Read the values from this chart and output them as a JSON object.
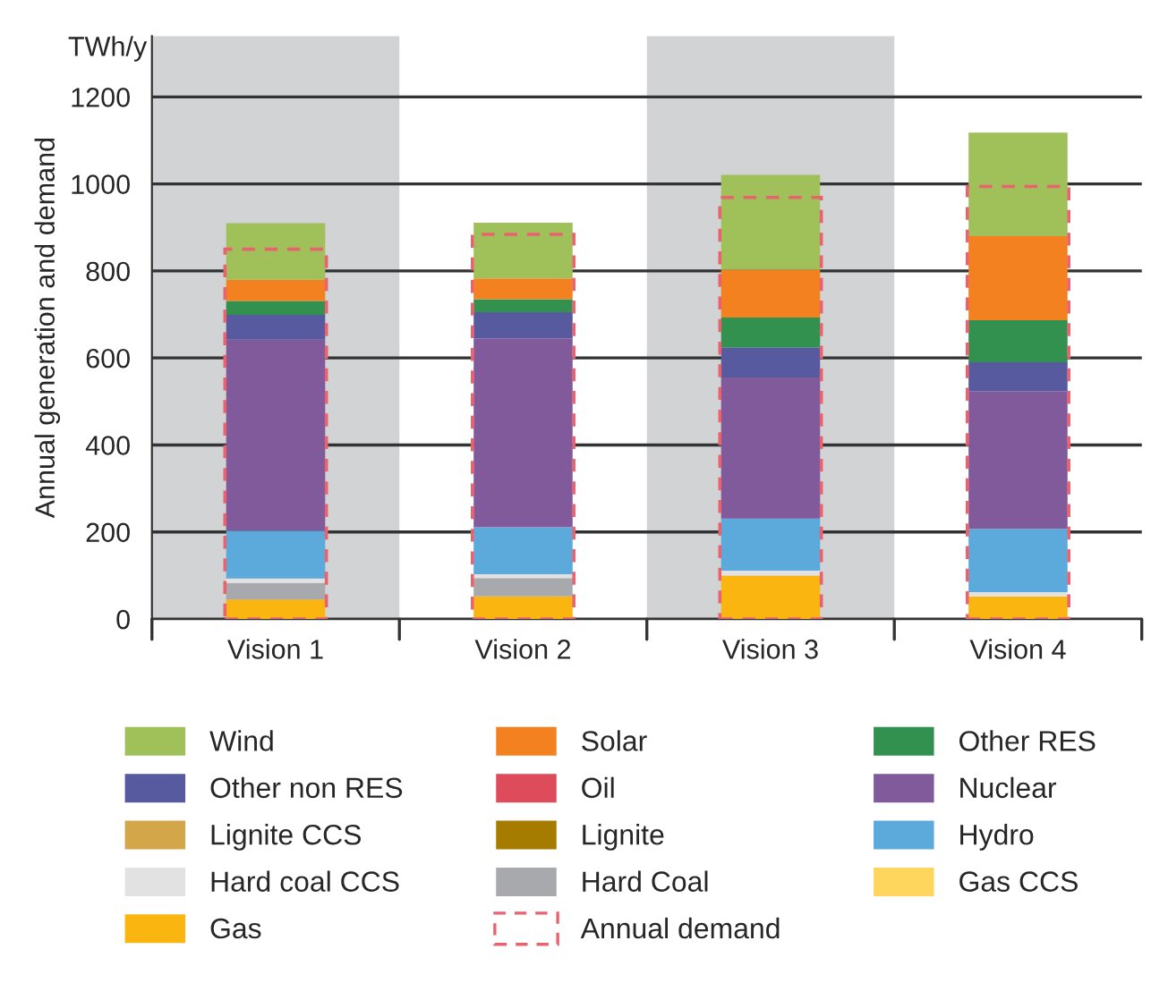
{
  "chart_data": [
    {
      "type": "bar",
      "stacked": true,
      "categories": [
        "Vision 1",
        "Vision 2",
        "Vision 3",
        "Vision 4"
      ],
      "ylabel": "Annual generation and demand",
      "annotations": [
        "TWh/y"
      ],
      "ylim": [
        0,
        1340
      ],
      "yticks": [
        0,
        200,
        400,
        600,
        800,
        1000,
        1200
      ],
      "grid": "y",
      "legend": "bottom",
      "bands": [
        {
          "axis": "x",
          "from": "Vision 1",
          "to": "Vision 1",
          "color": "#d1d3d4"
        },
        {
          "axis": "x",
          "from": "Vision 3",
          "to": "Vision 3",
          "color": "#d1d3d4"
        }
      ],
      "series": [
        {
          "name": "Gas",
          "color": "#fbb511",
          "values": [
            45,
            52,
            100,
            52
          ]
        },
        {
          "name": "Gas CCS",
          "color": "#fed65e",
          "values": [
            0,
            0,
            0,
            0
          ]
        },
        {
          "name": "Hard Coal",
          "color": "#a7a9ac",
          "values": [
            38,
            42,
            0,
            0
          ]
        },
        {
          "name": "Hard coal CCS",
          "color": "#e2e2e2",
          "values": [
            10,
            9,
            11,
            10
          ]
        },
        {
          "name": "Hydro",
          "color": "#5ca9dc",
          "values": [
            110,
            108,
            120,
            145
          ]
        },
        {
          "name": "Lignite",
          "color": "#a57b00",
          "values": [
            0,
            0,
            0,
            0
          ]
        },
        {
          "name": "Lignite CCS",
          "color": "#d4a64a",
          "values": [
            0,
            0,
            0,
            0
          ]
        },
        {
          "name": "Nuclear",
          "color": "#815a9b",
          "values": [
            439,
            434,
            324,
            317
          ]
        },
        {
          "name": "Oil",
          "color": "#de4b5a",
          "values": [
            0,
            0,
            0,
            0
          ]
        },
        {
          "name": "Other non RES",
          "color": "#575a9f",
          "values": [
            57,
            60,
            69,
            66
          ]
        },
        {
          "name": "Other RES",
          "color": "#32914f",
          "values": [
            32,
            30,
            69,
            97
          ]
        },
        {
          "name": "Solar",
          "color": "#f38120",
          "values": [
            49,
            48,
            110,
            193
          ]
        },
        {
          "name": "Wind",
          "color": "#a0c05a",
          "values": [
            130,
            128,
            218,
            238
          ]
        }
      ]
    },
    {
      "type": "bar",
      "categories": [
        "Vision 1",
        "Vision 2",
        "Vision 3",
        "Vision 4"
      ],
      "ylim": [
        0,
        1340
      ],
      "yticks": [
        0,
        200,
        400,
        600,
        800,
        1000,
        1200
      ],
      "tick_labels": false,
      "series": [
        {
          "name": "Annual demand",
          "color": "#e8636e",
          "line_style": "dashed",
          "values": [
            850,
            884,
            969,
            994
          ]
        }
      ]
    }
  ]
}
